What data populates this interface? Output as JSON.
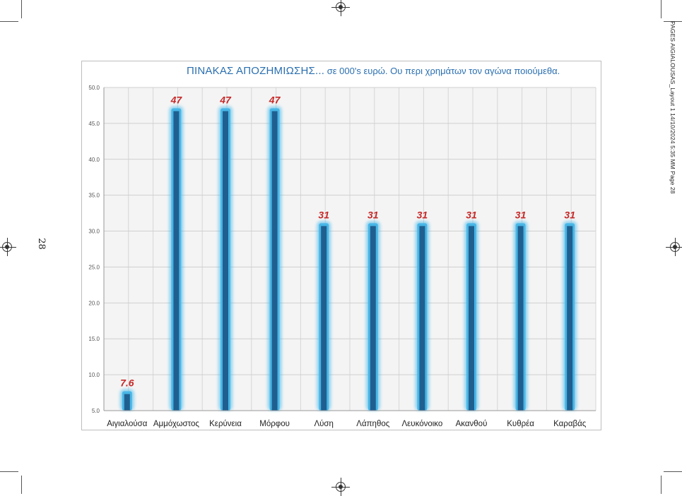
{
  "page": {
    "slug": "PAGES AIGIALOUSAS_Layout 1  14/10/2024  5:35 ΜΜ  Page 28",
    "folio": "28"
  },
  "title": {
    "main": "ΠΙΝΑΚΑΣ ΑΠΟΖΗΜΙΩΣΗΣ...",
    "sub": "σε 000's ευρώ.  Ου περι χρημάτων τον αγώνα ποιούμεθα."
  },
  "chart_data": {
    "type": "bar",
    "title": "ΠΙΝΑΚΑΣ ΑΠΟΖΗΜΙΩΣΗΣ...  σε 000's ευρώ.  Ου περι χρημάτων τον αγώνα ποιούμεθα.",
    "categories": [
      "Αιγιαλούσα",
      "Αμμόχωστος",
      "Κερύνεια",
      "Μόρφου",
      "Λύση",
      "Λάπηθος",
      "Λευκόνοικο",
      "Ακανθού",
      "Κυθρέα",
      "Καραβάς"
    ],
    "values": [
      7.6,
      47,
      47,
      47,
      31,
      31,
      31,
      31,
      31,
      31
    ],
    "data_labels": [
      "7.6",
      "47",
      "47",
      "47",
      "31",
      "31",
      "31",
      "31",
      "31",
      "31"
    ],
    "ylim": [
      5,
      50
    ],
    "yticks": [
      "5.0",
      "10.0",
      "15.0",
      "20.0",
      "25.0",
      "30.0",
      "35.0",
      "40.0",
      "45.0",
      "50.0"
    ],
    "xlabel": "",
    "ylabel": "",
    "grid": true,
    "legend": "none",
    "colors": {
      "bar": "#1f5f8f",
      "glow": "#3fb8ec",
      "label": "#c62828",
      "grid": "#d6d6d6"
    }
  }
}
